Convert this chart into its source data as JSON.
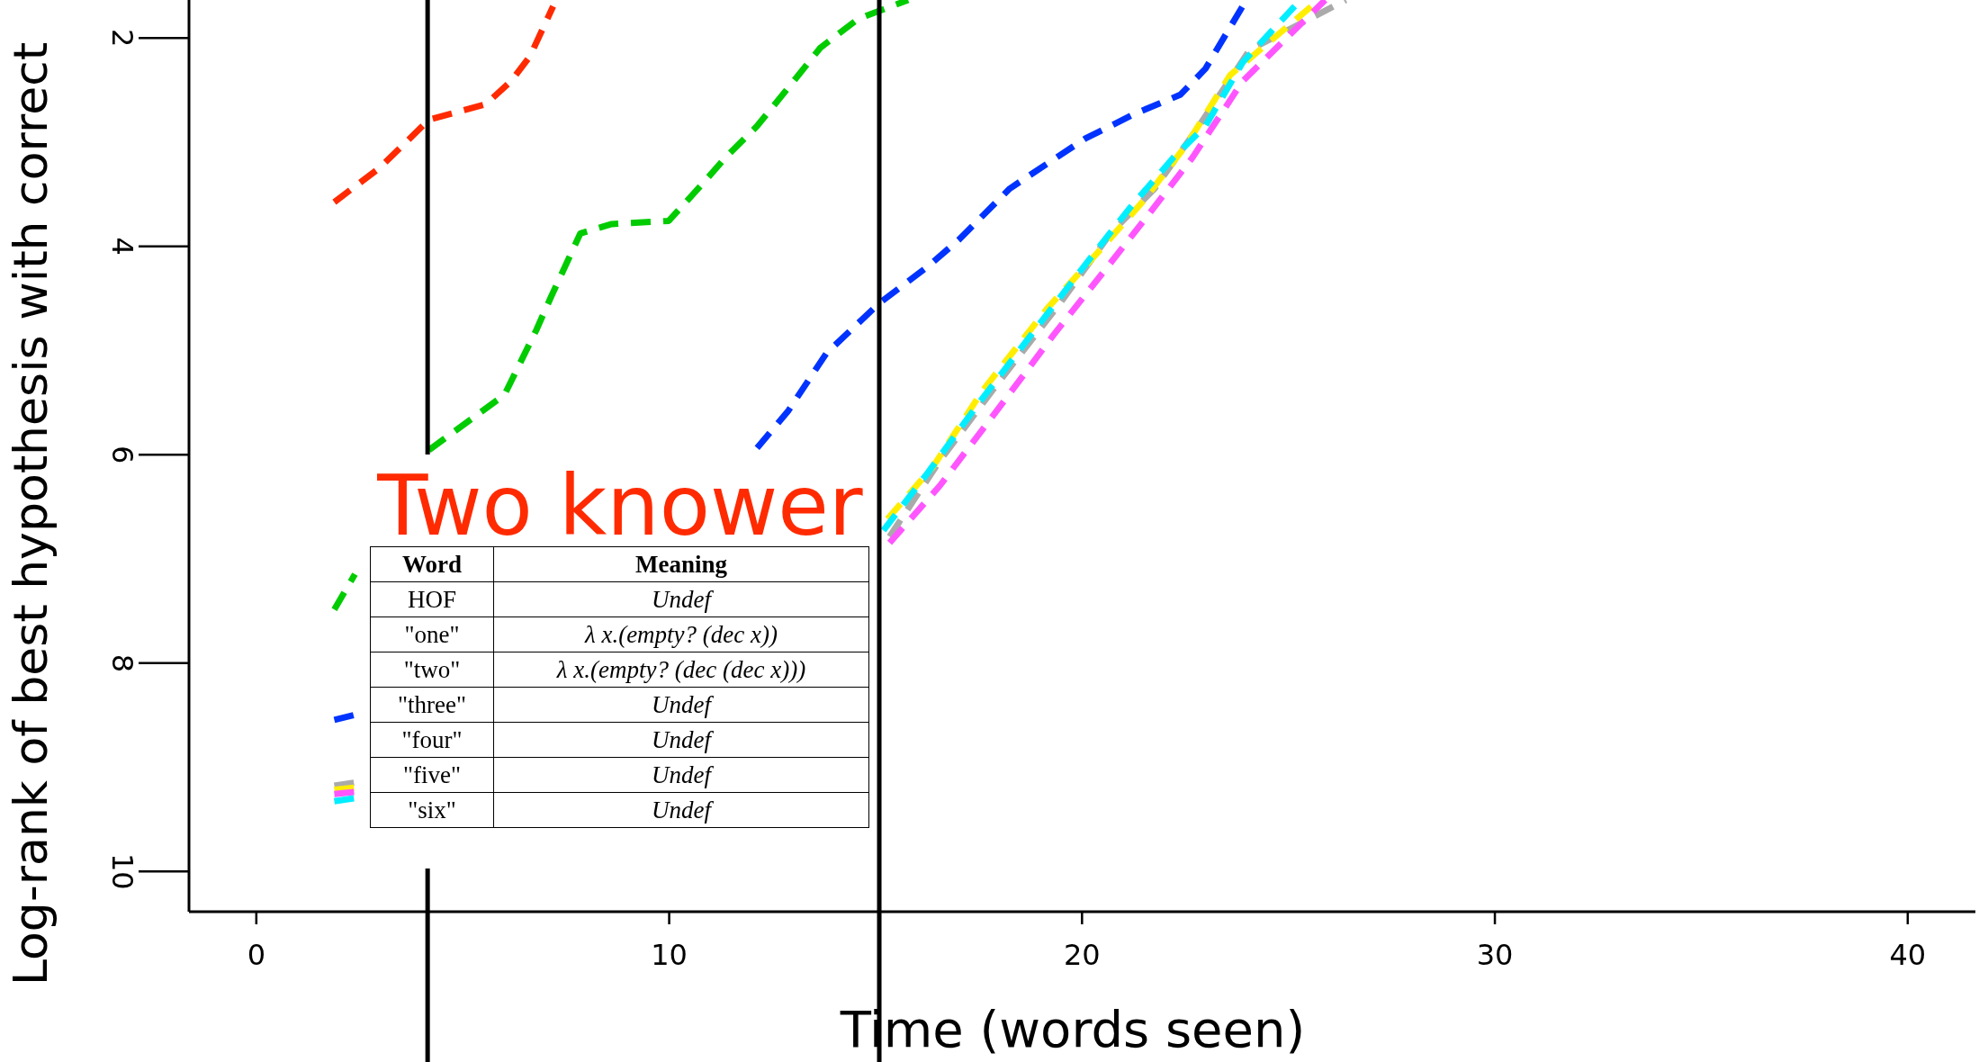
{
  "chart_data": {
    "type": "line",
    "xlabel": "Time (words seen)",
    "ylabel": "Log-rank of best hypothesis with correct",
    "xlim": [
      -1.62,
      41.65
    ],
    "ylim": [
      10.39,
      1.64
    ],
    "xticks": [
      0,
      10,
      20,
      30,
      40
    ],
    "yticks": [
      2,
      4,
      6,
      8,
      10
    ],
    "grid": false,
    "line_style": "dashed",
    "marker": "none",
    "ref_lines": [
      {
        "axis": "x",
        "value": 4.16,
        "color": "#000000"
      },
      {
        "axis": "x",
        "value": 15.1,
        "color": "#000000"
      }
    ],
    "series": [
      {
        "color": "#ff2a00",
        "x": [
          1.9,
          3.0,
          4.19,
          5.57,
          6.18,
          6.64,
          7.2
        ],
        "values": [
          3.58,
          3.25,
          2.79,
          2.64,
          2.42,
          2.18,
          1.7
        ]
      },
      {
        "color": "#00cc00",
        "x": [
          1.9,
          2.4,
          3.3,
          4.19,
          6.02,
          6.79,
          7.16,
          7.86,
          8.62,
          10,
          10.76,
          11.38,
          12.14,
          12.9,
          13.67,
          14.59,
          15.8
        ],
        "values": [
          7.49,
          7.15,
          null,
          5.96,
          5.43,
          4.81,
          4.48,
          3.88,
          3.79,
          3.76,
          3.43,
          3.15,
          2.85,
          2.48,
          2.1,
          1.82,
          1.64
        ]
      },
      {
        "color": "#0033ff",
        "x": [
          1.9,
          2.4,
          7,
          12.14,
          12.9,
          13.82,
          15.1,
          16.27,
          17.03,
          18.26,
          19.17,
          20.09,
          21.3,
          22.39,
          23,
          23.9
        ],
        "values": [
          8.55,
          8.5,
          null,
          5.94,
          5.58,
          5.03,
          4.55,
          4.2,
          3.94,
          3.45,
          3.21,
          2.97,
          2.73,
          2.55,
          2.3,
          1.7
        ]
      },
      {
        "color": "#aaaaaa",
        "x": [
          1.9,
          2.4,
          8,
          15.35,
          16.57,
          17.95,
          19.48,
          20.7,
          21.77,
          22.84,
          24.07,
          26.4
        ],
        "values": [
          9.18,
          9.15,
          null,
          6.79,
          6.06,
          5.33,
          4.55,
          3.88,
          3.45,
          2.85,
          2.12,
          1.64
        ]
      },
      {
        "color": "#ffee00",
        "x": [
          1.9,
          2.4,
          8,
          15.3,
          16.4,
          17.6,
          19.17,
          20.4,
          21.47,
          22.54,
          23.6,
          25.75
        ],
        "values": [
          9.22,
          9.2,
          null,
          6.62,
          6.12,
          5.39,
          4.6,
          4.06,
          3.58,
          3.03,
          2.36,
          1.64
        ]
      },
      {
        "color": "#ff55ff",
        "x": [
          1.9,
          2.4,
          8,
          15.35,
          16.57,
          17.95,
          19.33,
          20.55,
          21.62,
          22.69,
          23.9,
          25.9
        ],
        "values": [
          9.26,
          9.24,
          null,
          6.85,
          6.3,
          5.58,
          4.85,
          4.24,
          3.7,
          3.15,
          2.42,
          1.64
        ]
      },
      {
        "color": "#00eeff",
        "x": [
          1.9,
          2.4,
          8,
          15.2,
          16.27,
          17.49,
          19.02,
          20.09,
          21.16,
          22.23,
          23,
          23.9,
          25.3
        ],
        "values": [
          9.33,
          9.3,
          null,
          6.73,
          6.18,
          5.52,
          4.73,
          4.18,
          3.64,
          3.15,
          2.85,
          2.24,
          1.64
        ]
      }
    ],
    "annotations": [
      "Two knower",
      "Word",
      "Meaning",
      "HOF",
      "Undef",
      "\"one\"",
      "λ x.(empty? (dec x))",
      "\"two\"",
      "λ x.(empty? (dec (dec x)))",
      "\"three\"",
      "Undef",
      "\"four\"",
      "Undef",
      "\"five\"",
      "Undef",
      "\"six\"",
      "Undef"
    ]
  }
}
